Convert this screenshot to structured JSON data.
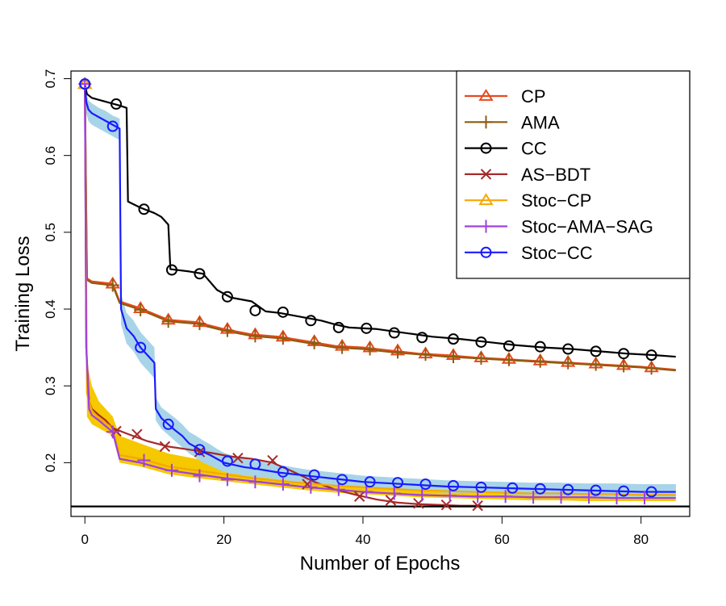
{
  "chart_data": {
    "type": "line",
    "title": "",
    "xlabel": "Number of Epochs",
    "ylabel": "Training Loss",
    "xlim": [
      -2,
      87
    ],
    "ylim": [
      0.13,
      0.71
    ],
    "xticks": [
      0,
      20,
      40,
      60,
      80
    ],
    "yticks": [
      0.2,
      0.3,
      0.4,
      0.5,
      0.6,
      0.7
    ],
    "tick_labels_x": [
      "0",
      "20",
      "40",
      "60",
      "80"
    ],
    "tick_labels_y": [
      "0.2",
      "0.3",
      "0.4",
      "0.5",
      "0.6",
      "0.7"
    ],
    "grid": false,
    "legend_position": "top-right",
    "reference_line": {
      "y": 0.143,
      "color": "#000000"
    },
    "series": [
      {
        "name": "CP",
        "color": "#e8491d",
        "marker": "triangle",
        "x": [
          0,
          0.3,
          1,
          2,
          4,
          5,
          8,
          12,
          16,
          20,
          24,
          28,
          32,
          36,
          40,
          44,
          48,
          52,
          56,
          60,
          64,
          68,
          72,
          76,
          80,
          85
        ],
        "y": [
          0.693,
          0.44,
          0.436,
          0.435,
          0.433,
          0.41,
          0.401,
          0.386,
          0.383,
          0.374,
          0.367,
          0.364,
          0.358,
          0.352,
          0.35,
          0.346,
          0.342,
          0.34,
          0.337,
          0.335,
          0.333,
          0.331,
          0.329,
          0.327,
          0.325,
          0.321
        ],
        "markers_x": [
          0,
          4,
          8,
          12,
          16.5,
          20.5,
          24.5,
          28.5,
          33,
          37,
          41,
          45,
          49,
          53,
          57,
          61,
          65.5,
          69.5,
          73.5,
          77.5,
          81.5
        ],
        "markers_y": [
          0.693,
          0.433,
          0.401,
          0.386,
          0.383,
          0.374,
          0.367,
          0.364,
          0.358,
          0.352,
          0.35,
          0.346,
          0.342,
          0.34,
          0.337,
          0.335,
          0.333,
          0.331,
          0.329,
          0.327,
          0.324
        ]
      },
      {
        "name": "AMA",
        "color": "#8b5e0f",
        "marker": "plus",
        "x": [
          0,
          0.3,
          1,
          2,
          4,
          5,
          8,
          12,
          16,
          20,
          24,
          28,
          32,
          36,
          40,
          44,
          48,
          52,
          56,
          60,
          64,
          68,
          72,
          76,
          80,
          85
        ],
        "y": [
          0.693,
          0.438,
          0.434,
          0.433,
          0.431,
          0.408,
          0.399,
          0.384,
          0.381,
          0.372,
          0.365,
          0.362,
          0.356,
          0.35,
          0.348,
          0.344,
          0.341,
          0.338,
          0.336,
          0.334,
          0.332,
          0.33,
          0.328,
          0.326,
          0.324,
          0.32
        ],
        "markers_x": [
          4,
          8,
          12,
          16.5,
          20.5,
          24.5,
          28.5,
          33,
          37,
          41,
          45,
          49,
          53,
          57,
          61,
          65.5,
          69.5,
          73.5,
          77.5,
          81.5
        ],
        "markers_y": [
          0.431,
          0.399,
          0.384,
          0.381,
          0.372,
          0.365,
          0.362,
          0.356,
          0.35,
          0.348,
          0.344,
          0.341,
          0.338,
          0.336,
          0.334,
          0.332,
          0.33,
          0.328,
          0.326,
          0.323
        ]
      },
      {
        "name": "CC",
        "color": "#000000",
        "marker": "circle",
        "x": [
          0,
          0.3,
          1,
          3,
          5,
          6,
          6.2,
          8,
          10,
          11,
          12,
          12.3,
          15,
          17,
          19,
          21,
          24,
          26,
          28,
          31,
          34,
          36,
          38,
          42,
          46,
          50,
          54,
          58,
          62,
          66,
          70,
          74,
          78,
          82,
          85
        ],
        "y": [
          0.693,
          0.68,
          0.675,
          0.67,
          0.665,
          0.662,
          0.54,
          0.532,
          0.525,
          0.52,
          0.51,
          0.452,
          0.449,
          0.446,
          0.425,
          0.415,
          0.41,
          0.397,
          0.395,
          0.39,
          0.385,
          0.38,
          0.376,
          0.374,
          0.369,
          0.364,
          0.361,
          0.357,
          0.353,
          0.35,
          0.348,
          0.345,
          0.342,
          0.34,
          0.338
        ],
        "markers_x": [
          0,
          4.5,
          8.5,
          12.5,
          16.5,
          20.5,
          24.5,
          28.5,
          32.5,
          36.5,
          40.5,
          44.5,
          48.5,
          53,
          57,
          61,
          65.5,
          69.5,
          73.5,
          77.5,
          81.5
        ],
        "markers_y": [
          0.693,
          0.667,
          0.53,
          0.451,
          0.446,
          0.416,
          0.398,
          0.396,
          0.385,
          0.376,
          0.375,
          0.369,
          0.363,
          0.361,
          0.357,
          0.352,
          0.351,
          0.348,
          0.345,
          0.342,
          0.34
        ]
      },
      {
        "name": "AS−BDT",
        "color": "#a52a2a",
        "marker": "x",
        "x": [
          0,
          0.2,
          0.6,
          1,
          2,
          3,
          4,
          6,
          9,
          12,
          15,
          18,
          21,
          24,
          27,
          30,
          33,
          36,
          39,
          42,
          45,
          48,
          51,
          54,
          57
        ],
        "y": [
          0.693,
          0.35,
          0.28,
          0.27,
          0.262,
          0.255,
          0.245,
          0.238,
          0.228,
          0.221,
          0.217,
          0.213,
          0.208,
          0.205,
          0.2,
          0.188,
          0.175,
          0.165,
          0.158,
          0.152,
          0.148,
          0.146,
          0.145,
          0.144,
          0.144
        ],
        "markers_x": [
          4.5,
          7.5,
          11.5,
          16.5,
          22,
          27,
          32,
          39.5,
          44,
          48,
          52,
          56.5
        ],
        "markers_y": [
          0.241,
          0.237,
          0.221,
          0.214,
          0.206,
          0.203,
          0.172,
          0.156,
          0.151,
          0.147,
          0.145,
          0.144
        ]
      },
      {
        "name": "Stoc−CP",
        "color": "#f5a800",
        "marker": "triangle",
        "x": [
          0,
          0.3,
          1,
          2,
          4,
          5,
          8,
          12,
          16,
          20,
          24,
          28,
          32,
          36,
          40,
          44,
          48,
          52,
          56,
          60,
          64,
          68,
          72,
          76,
          80,
          85
        ],
        "y": [
          0.693,
          0.29,
          0.268,
          0.258,
          0.245,
          0.21,
          0.205,
          0.195,
          0.19,
          0.185,
          0.18,
          0.176,
          0.173,
          0.17,
          0.168,
          0.166,
          0.164,
          0.163,
          0.162,
          0.161,
          0.16,
          0.16,
          0.159,
          0.159,
          0.158,
          0.158
        ],
        "band_upper": [
          0.693,
          0.33,
          0.3,
          0.28,
          0.26,
          0.235,
          0.225,
          0.212,
          0.205,
          0.198,
          0.192,
          0.187,
          0.183,
          0.18,
          0.178,
          0.176,
          0.175,
          0.174,
          0.173,
          0.173,
          0.172,
          0.172,
          0.172,
          0.172,
          0.172,
          0.172
        ],
        "band_lower": [
          0.693,
          0.26,
          0.25,
          0.245,
          0.235,
          0.2,
          0.195,
          0.185,
          0.18,
          0.176,
          0.172,
          0.168,
          0.164,
          0.161,
          0.159,
          0.157,
          0.155,
          0.154,
          0.153,
          0.152,
          0.151,
          0.151,
          0.15,
          0.15,
          0.15,
          0.15
        ],
        "band_color": "#f5c800",
        "markers_x": [
          0
        ],
        "markers_y": [
          0.693
        ]
      },
      {
        "name": "Stoc−AMA−SAG",
        "color": "#a040e0",
        "marker": "plus",
        "x": [
          0,
          0.2,
          0.6,
          1,
          2,
          4,
          5,
          8,
          12,
          16,
          20,
          24,
          28,
          32,
          36,
          40,
          44,
          48,
          52,
          56,
          60,
          64,
          68,
          72,
          76,
          80,
          85
        ],
        "y": [
          0.693,
          0.35,
          0.27,
          0.262,
          0.255,
          0.24,
          0.205,
          0.2,
          0.19,
          0.185,
          0.18,
          0.176,
          0.172,
          0.168,
          0.165,
          0.162,
          0.16,
          0.158,
          0.157,
          0.156,
          0.156,
          0.155,
          0.155,
          0.155,
          0.154,
          0.154,
          0.154
        ],
        "markers_x": [
          0,
          4,
          8.5,
          12.5,
          16.5,
          20.5,
          24.5,
          28.5,
          32.5,
          36.5,
          40.5,
          44.5,
          48.5,
          52.5,
          56.5,
          60.5,
          64.5,
          68.5,
          72.5,
          76.5,
          80.5
        ],
        "markers_y": [
          0.693,
          0.24,
          0.203,
          0.19,
          0.183,
          0.178,
          0.175,
          0.172,
          0.168,
          0.165,
          0.162,
          0.16,
          0.158,
          0.157,
          0.156,
          0.156,
          0.155,
          0.155,
          0.155,
          0.154,
          0.154
        ]
      },
      {
        "name": "Stoc−CC",
        "color": "#1a1aff",
        "marker": "circle",
        "x": [
          0,
          0.2,
          0.5,
          1,
          2,
          3,
          4,
          5,
          5.2,
          6,
          7,
          8,
          9,
          10,
          10.2,
          11,
          12,
          13,
          14,
          15,
          16,
          17,
          18,
          19,
          20,
          21,
          22,
          23,
          24,
          26,
          28,
          30,
          32,
          34,
          36,
          38,
          40,
          44,
          48,
          52,
          56,
          60,
          64,
          68,
          72,
          76,
          80,
          85
        ],
        "y": [
          0.693,
          0.67,
          0.66,
          0.655,
          0.65,
          0.645,
          0.64,
          0.635,
          0.4,
          0.375,
          0.365,
          0.35,
          0.34,
          0.33,
          0.27,
          0.258,
          0.25,
          0.242,
          0.235,
          0.225,
          0.22,
          0.214,
          0.21,
          0.205,
          0.2,
          0.198,
          0.196,
          0.194,
          0.193,
          0.19,
          0.187,
          0.185,
          0.183,
          0.181,
          0.179,
          0.177,
          0.175,
          0.173,
          0.171,
          0.169,
          0.168,
          0.167,
          0.166,
          0.165,
          0.164,
          0.163,
          0.162,
          0.162
        ],
        "band_upper": [
          0.693,
          0.68,
          0.672,
          0.668,
          0.662,
          0.658,
          0.652,
          0.648,
          0.42,
          0.395,
          0.385,
          0.37,
          0.36,
          0.35,
          0.285,
          0.272,
          0.265,
          0.258,
          0.25,
          0.24,
          0.235,
          0.229,
          0.224,
          0.218,
          0.213,
          0.21,
          0.207,
          0.205,
          0.203,
          0.2,
          0.197,
          0.194,
          0.191,
          0.189,
          0.187,
          0.185,
          0.183,
          0.181,
          0.179,
          0.177,
          0.176,
          0.175,
          0.174,
          0.174,
          0.173,
          0.173,
          0.172,
          0.172
        ],
        "band_lower": [
          0.693,
          0.655,
          0.645,
          0.64,
          0.635,
          0.63,
          0.625,
          0.62,
          0.38,
          0.355,
          0.345,
          0.33,
          0.32,
          0.31,
          0.255,
          0.244,
          0.236,
          0.228,
          0.22,
          0.212,
          0.206,
          0.2,
          0.196,
          0.192,
          0.188,
          0.186,
          0.185,
          0.183,
          0.182,
          0.18,
          0.178,
          0.176,
          0.174,
          0.172,
          0.171,
          0.169,
          0.167,
          0.165,
          0.163,
          0.161,
          0.16,
          0.159,
          0.158,
          0.157,
          0.156,
          0.155,
          0.155,
          0.155
        ],
        "band_color": "#a8d4e8",
        "markers_x": [
          0,
          4,
          8,
          12,
          16.5,
          20.5,
          24.5,
          28.5,
          33,
          37,
          41,
          45,
          49,
          53,
          57,
          61.5,
          65.5,
          69.5,
          73.5,
          77.5,
          81.5
        ],
        "markers_y": [
          0.693,
          0.638,
          0.35,
          0.25,
          0.217,
          0.202,
          0.198,
          0.188,
          0.184,
          0.178,
          0.175,
          0.174,
          0.172,
          0.17,
          0.168,
          0.167,
          0.166,
          0.165,
          0.164,
          0.163,
          0.162
        ]
      }
    ]
  }
}
